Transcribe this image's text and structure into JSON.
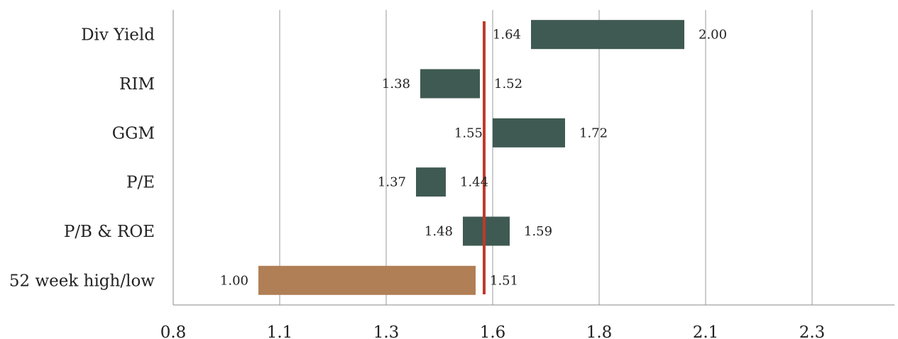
{
  "chart_data": {
    "type": "bar",
    "subtype": "floating-range-bar",
    "title": "",
    "xlabel": "",
    "ylabel": "",
    "xlim": [
      0.8,
      2.5
    ],
    "x_ticks": [
      0.8,
      1.05,
      1.3,
      1.55,
      1.8,
      2.05,
      2.3
    ],
    "x_tick_labels": [
      "0.8",
      "1.1",
      "1.3",
      "1.6",
      "1.8",
      "2.1",
      "2.3"
    ],
    "grid": "vertical",
    "categories": [
      "Div Yield",
      "RIM",
      "GGM",
      "P/E",
      "P/B & ROE",
      "52 week high/low"
    ],
    "low": [
      1.64,
      1.38,
      1.55,
      1.37,
      1.48,
      1.0
    ],
    "high": [
      2.0,
      1.52,
      1.72,
      1.44,
      1.59,
      1.51
    ],
    "low_labels": [
      "1.64",
      "1.38",
      "1.55",
      "1.37",
      "1.48",
      "1.00"
    ],
    "high_labels": [
      "2.00",
      "1.52",
      "1.72",
      "1.44",
      "1.59",
      "1.51"
    ],
    "bar_colors": [
      "#3f5a52",
      "#3f5a52",
      "#3f5a52",
      "#3f5a52",
      "#3f5a52",
      "#b17f55"
    ],
    "reference_line": {
      "value": 1.53,
      "color": "#c0392b"
    }
  }
}
